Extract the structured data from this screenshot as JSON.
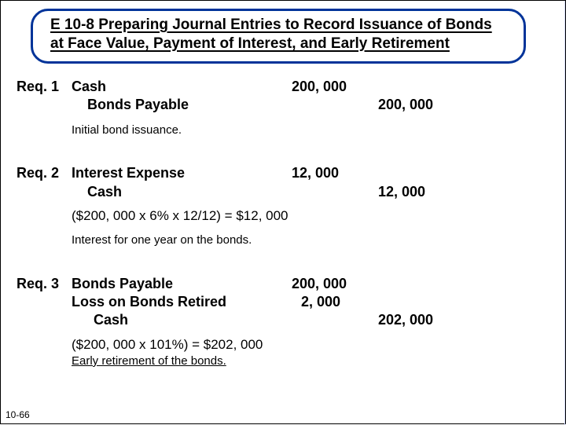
{
  "title": {
    "line1": "E 10-8 Preparing Journal Entries to Record Issuance of Bonds",
    "line2": "at Face Value, Payment of Interest, and Early Retirement"
  },
  "colors": {
    "border": "#003399",
    "background": "#ffffff",
    "text": "#000000"
  },
  "entries": [
    {
      "req": "Req. 1",
      "lines": [
        {
          "account": "Cash",
          "indent": 0,
          "debit": "200, 000",
          "credit": ""
        },
        {
          "account": "Bonds Payable",
          "indent": 1,
          "debit": "",
          "credit": "200, 000"
        }
      ],
      "calc": "",
      "note": "Initial bond issuance."
    },
    {
      "req": "Req. 2",
      "lines": [
        {
          "account": "Interest Expense",
          "indent": 0,
          "debit": "12, 000",
          "credit": ""
        },
        {
          "account": "Cash",
          "indent": 1,
          "debit": "",
          "credit": "12, 000"
        }
      ],
      "calc": "($200, 000 x 6% x 12/12) = $12, 000",
      "note": "Interest for one year on the bonds."
    },
    {
      "req": "Req. 3",
      "lines": [
        {
          "account": "Bonds Payable",
          "indent": 0,
          "debit": "200, 000",
          "credit": ""
        },
        {
          "account": "Loss on Bonds Retired",
          "indent": 0,
          "debit": "2, 000",
          "credit": ""
        },
        {
          "account": "Cash",
          "indent": 2,
          "debit": "",
          "credit": "202, 000"
        }
      ],
      "calc": "($200, 000 x 101%) = $202, 000",
      "note": "Early retirement of the bonds."
    }
  ],
  "page_number": "10-66"
}
